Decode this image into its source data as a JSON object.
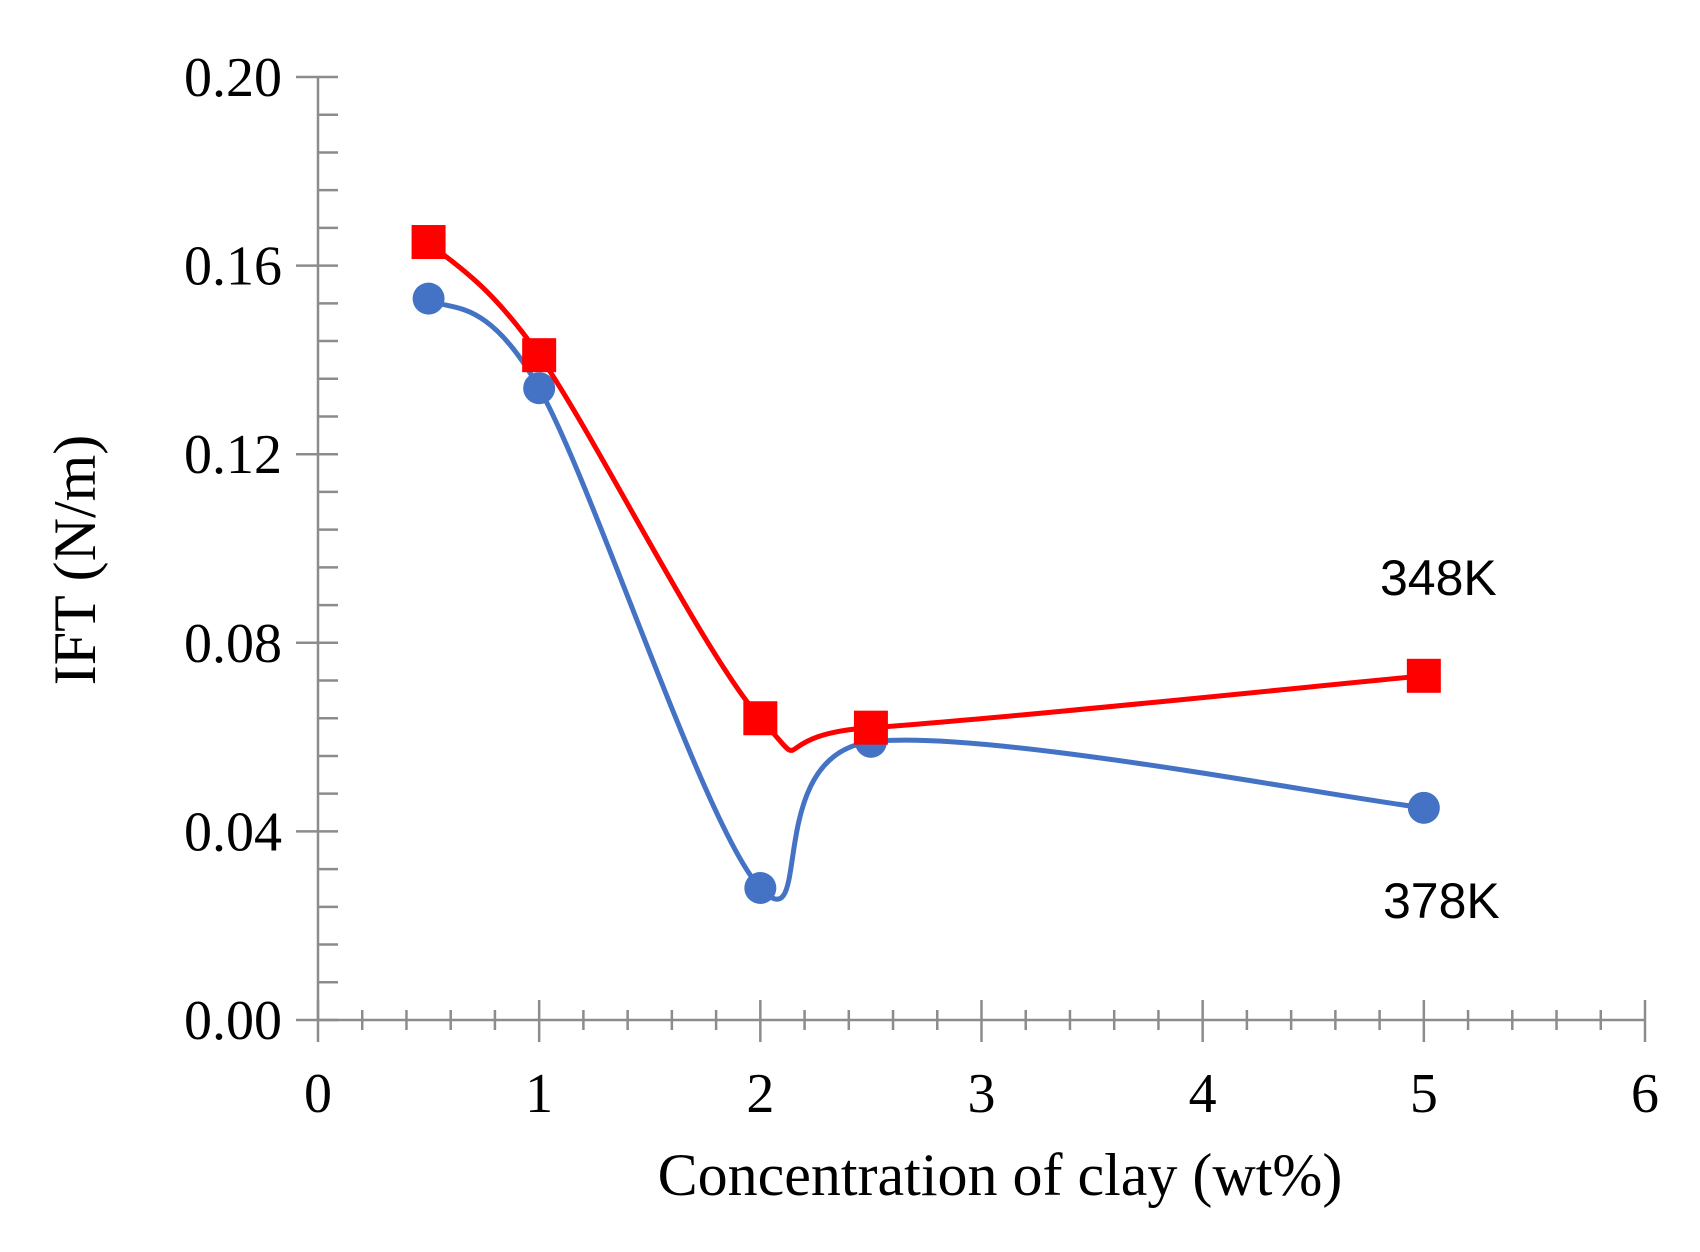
{
  "chart_data": {
    "type": "line",
    "title": "",
    "xlabel": "Concentration of clay (wt%)",
    "ylabel": "IFT (N/m)",
    "xlim": [
      0,
      6
    ],
    "ylim": [
      0,
      0.2
    ],
    "x_ticks": [
      "0",
      "1",
      "2",
      "3",
      "4",
      "5",
      "6"
    ],
    "y_ticks": [
      "0.00",
      "0.04",
      "0.08",
      "0.12",
      "0.16",
      "0.20"
    ],
    "x_tick_values": [
      0,
      1,
      2,
      3,
      4,
      5,
      6
    ],
    "y_tick_values": [
      0,
      0.04,
      0.08,
      0.12,
      0.16,
      0.2
    ],
    "x_minor_step": 0.2,
    "y_minor_step": 0.008,
    "smooth": true,
    "series": [
      {
        "name": "348K",
        "color": "#ff0000",
        "marker": "square",
        "x": [
          0.5,
          1,
          2,
          2.5,
          5
        ],
        "y": [
          0.165,
          0.141,
          0.064,
          0.062,
          0.073
        ]
      },
      {
        "name": "378K",
        "color": "#4472c4",
        "marker": "circle",
        "x": [
          0.5,
          1,
          2,
          2.5,
          5
        ],
        "y": [
          0.153,
          0.134,
          0.028,
          0.059,
          0.045
        ]
      }
    ],
    "annotations": [
      {
        "text": "348K",
        "series": "348K"
      },
      {
        "text": "378K",
        "series": "378K"
      }
    ]
  }
}
